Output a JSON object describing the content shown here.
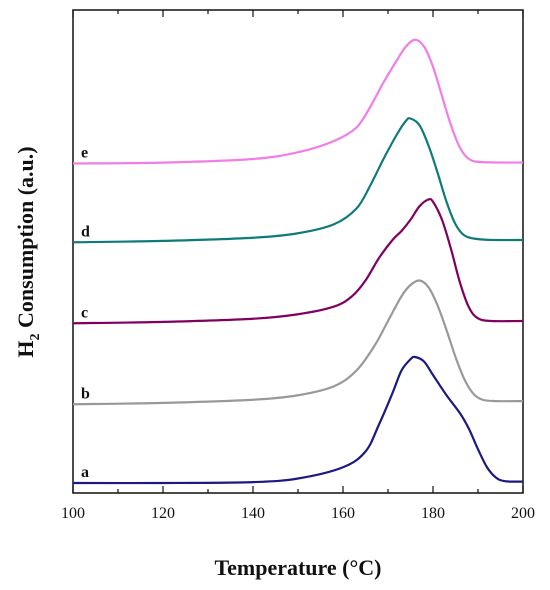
{
  "chart_data": {
    "type": "line",
    "title": "",
    "xlabel": "Temperature (°C)",
    "ylabel_main": "H",
    "ylabel_sub": "2",
    "ylabel_rest": " Consumption (a.u.)",
    "xlim": [
      100,
      200
    ],
    "xticks": [
      100,
      120,
      140,
      160,
      180,
      200
    ],
    "xtick_labels": [
      "100",
      "120",
      "140",
      "160",
      "180",
      "200"
    ],
    "ylim": [
      0,
      10
    ],
    "grid": false,
    "legend": "none",
    "series": [
      {
        "name": "a",
        "color": "#1a1a80",
        "points": [
          [
            100,
            0.0
          ],
          [
            120,
            0.0
          ],
          [
            140,
            0.02
          ],
          [
            150,
            0.1
          ],
          [
            160,
            0.35
          ],
          [
            165,
            0.7
          ],
          [
            168,
            1.3
          ],
          [
            171,
            2.0
          ],
          [
            173,
            2.5
          ],
          [
            175,
            2.75
          ],
          [
            176,
            2.8
          ],
          [
            178,
            2.7
          ],
          [
            180,
            2.4
          ],
          [
            183,
            1.95
          ],
          [
            186,
            1.55
          ],
          [
            188,
            1.2
          ],
          [
            190,
            0.75
          ],
          [
            192,
            0.35
          ],
          [
            194,
            0.12
          ],
          [
            196,
            0.04
          ],
          [
            200,
            0.03
          ]
        ]
      },
      {
        "name": "b",
        "color": "#999999",
        "points": [
          [
            100,
            1.75
          ],
          [
            120,
            1.78
          ],
          [
            140,
            1.85
          ],
          [
            150,
            1.95
          ],
          [
            158,
            2.15
          ],
          [
            163,
            2.5
          ],
          [
            167,
            3.05
          ],
          [
            170,
            3.6
          ],
          [
            173,
            4.15
          ],
          [
            175,
            4.4
          ],
          [
            177,
            4.5
          ],
          [
            179,
            4.35
          ],
          [
            181,
            3.95
          ],
          [
            183,
            3.4
          ],
          [
            185,
            2.8
          ],
          [
            187,
            2.3
          ],
          [
            189,
            1.98
          ],
          [
            191,
            1.85
          ],
          [
            194,
            1.82
          ],
          [
            200,
            1.82
          ]
        ]
      },
      {
        "name": "c",
        "color": "#800060",
        "points": [
          [
            100,
            3.55
          ],
          [
            120,
            3.58
          ],
          [
            140,
            3.65
          ],
          [
            150,
            3.75
          ],
          [
            158,
            3.92
          ],
          [
            162,
            4.15
          ],
          [
            165,
            4.5
          ],
          [
            168,
            5.0
          ],
          [
            171,
            5.4
          ],
          [
            173,
            5.6
          ],
          [
            175,
            5.85
          ],
          [
            177,
            6.15
          ],
          [
            179,
            6.3
          ],
          [
            180,
            6.25
          ],
          [
            182,
            5.85
          ],
          [
            184,
            5.2
          ],
          [
            186,
            4.45
          ],
          [
            188,
            3.9
          ],
          [
            190,
            3.66
          ],
          [
            193,
            3.6
          ],
          [
            200,
            3.6
          ]
        ]
      },
      {
        "name": "d",
        "color": "#0f7a7a",
        "points": [
          [
            100,
            5.35
          ],
          [
            120,
            5.38
          ],
          [
            140,
            5.45
          ],
          [
            150,
            5.55
          ],
          [
            158,
            5.75
          ],
          [
            163,
            6.1
          ],
          [
            166,
            6.6
          ],
          [
            169,
            7.2
          ],
          [
            172,
            7.75
          ],
          [
            174,
            8.05
          ],
          [
            175,
            8.1
          ],
          [
            177,
            7.95
          ],
          [
            179,
            7.5
          ],
          [
            181,
            6.9
          ],
          [
            183,
            6.25
          ],
          [
            185,
            5.75
          ],
          [
            187,
            5.5
          ],
          [
            190,
            5.42
          ],
          [
            194,
            5.4
          ],
          [
            200,
            5.4
          ]
        ]
      },
      {
        "name": "e",
        "color": "#f07ee8",
        "points": [
          [
            100,
            7.1
          ],
          [
            120,
            7.12
          ],
          [
            140,
            7.2
          ],
          [
            150,
            7.35
          ],
          [
            158,
            7.6
          ],
          [
            163,
            7.9
          ],
          [
            166,
            8.35
          ],
          [
            169,
            8.9
          ],
          [
            172,
            9.4
          ],
          [
            174,
            9.7
          ],
          [
            176,
            9.85
          ],
          [
            178,
            9.7
          ],
          [
            180,
            9.25
          ],
          [
            182,
            8.6
          ],
          [
            184,
            7.95
          ],
          [
            186,
            7.45
          ],
          [
            188,
            7.2
          ],
          [
            191,
            7.13
          ],
          [
            200,
            7.12
          ]
        ]
      }
    ]
  }
}
